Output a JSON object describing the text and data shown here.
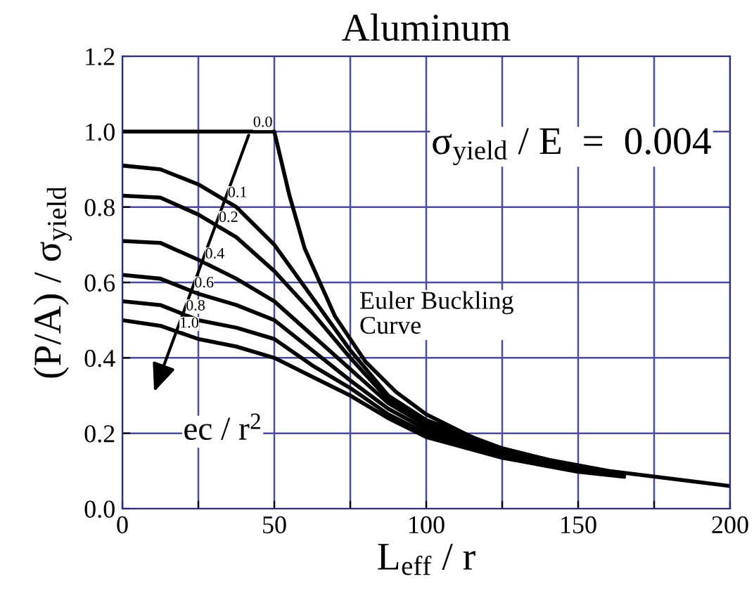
{
  "chart_data": {
    "type": "line",
    "title": "Aluminum",
    "xlabel": "L$_{eff}$ / r",
    "ylabel": "(P/A) / σ$_{yield}$",
    "series": [
      {
        "name": "0.0",
        "color": "#000000",
        "x": [
          0,
          50,
          55,
          60,
          70,
          80,
          90,
          100,
          120,
          140,
          160,
          180,
          200
        ],
        "values": [
          1.0,
          1.0,
          0.83,
          0.69,
          0.51,
          0.39,
          0.31,
          0.25,
          0.17,
          0.13,
          0.1,
          0.08,
          0.06
        ]
      },
      {
        "name": "0.1",
        "color": "#000000",
        "x": [
          0,
          12.5,
          25,
          37.5,
          50,
          62.5,
          75,
          87.5,
          100,
          125,
          150,
          165
        ],
        "values": [
          0.91,
          0.9,
          0.86,
          0.8,
          0.7,
          0.56,
          0.42,
          0.3,
          0.235,
          0.16,
          0.11,
          0.09
        ]
      },
      {
        "name": "0.2",
        "color": "#000000",
        "x": [
          0,
          12.5,
          25,
          37.5,
          50,
          62.5,
          75,
          87.5,
          100,
          125,
          150,
          165
        ],
        "values": [
          0.83,
          0.825,
          0.78,
          0.72,
          0.63,
          0.52,
          0.4,
          0.29,
          0.23,
          0.155,
          0.108,
          0.089
        ]
      },
      {
        "name": "0.4",
        "color": "#000000",
        "x": [
          0,
          12.5,
          25,
          37.5,
          50,
          62.5,
          75,
          87.5,
          100,
          125,
          150,
          165
        ],
        "values": [
          0.71,
          0.705,
          0.66,
          0.61,
          0.55,
          0.46,
          0.37,
          0.28,
          0.22,
          0.15,
          0.105,
          0.088
        ]
      },
      {
        "name": "0.6",
        "color": "#000000",
        "x": [
          0,
          12.5,
          25,
          37.5,
          50,
          62.5,
          75,
          87.5,
          100,
          125,
          150,
          165
        ],
        "values": [
          0.62,
          0.61,
          0.57,
          0.54,
          0.5,
          0.42,
          0.34,
          0.265,
          0.21,
          0.145,
          0.102,
          0.087
        ]
      },
      {
        "name": "0.8",
        "color": "#000000",
        "x": [
          0,
          12.5,
          25,
          37.5,
          50,
          62.5,
          75,
          87.5,
          100,
          125,
          150,
          165
        ],
        "values": [
          0.55,
          0.54,
          0.5,
          0.48,
          0.45,
          0.38,
          0.32,
          0.25,
          0.2,
          0.14,
          0.1,
          0.086
        ]
      },
      {
        "name": "1.0",
        "color": "#000000",
        "x": [
          0,
          12.5,
          25,
          37.5,
          50,
          62.5,
          75,
          87.5,
          100,
          125,
          150,
          165
        ],
        "values": [
          0.5,
          0.485,
          0.45,
          0.43,
          0.4,
          0.35,
          0.3,
          0.24,
          0.19,
          0.135,
          0.098,
          0.085
        ]
      }
    ],
    "annotations": [
      {
        "text": "Euler Buckling\nCurve",
        "x": 78,
        "y": 0.45
      },
      "σ$_{yield}$ / E  =  0.004",
      "ec / r$^{2}$"
    ],
    "xlim": [
      0,
      200
    ],
    "ylim": [
      0,
      1.2
    ],
    "xticks": [
      0,
      {
        "value": 25,
        "label": null
      },
      50,
      {
        "value": 75,
        "label": null
      },
      100,
      {
        "value": 125,
        "label": null
      },
      150,
      {
        "value": 175,
        "label": null
      },
      200
    ],
    "yticks": [
      {
        "value": 0,
        "label": "0.0"
      },
      0.2,
      0.4,
      0.6,
      0.8,
      {
        "value": 1,
        "label": "1.0"
      },
      1.2
    ],
    "grid": true,
    "legend": false,
    "marker": "none",
    "line_style": "solid"
  }
}
